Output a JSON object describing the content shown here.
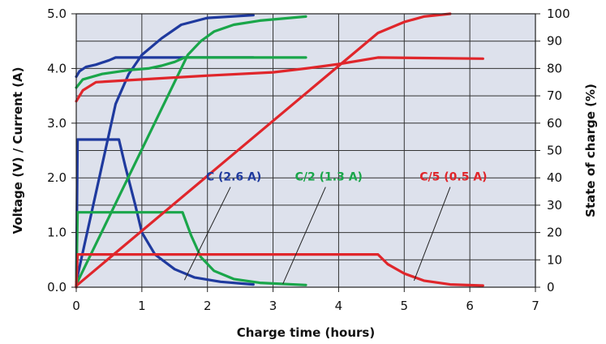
{
  "chart_data": {
    "type": "line",
    "xlabel": "Charge time (hours)",
    "ylabel_left": "Voltage (V) / Current (A)",
    "ylabel_right": "State of charge (%)",
    "xlim": [
      0,
      7
    ],
    "ylim_left": [
      0,
      5
    ],
    "ylim_right": [
      0,
      100
    ],
    "x_ticks": [
      "0",
      "1",
      "2",
      "3",
      "4",
      "5",
      "6",
      "7"
    ],
    "y_left_ticks": [
      "0.0",
      "1.0",
      "2.0",
      "3.0",
      "4.0",
      "5.0"
    ],
    "y_right_ticks": [
      "0",
      "10",
      "20",
      "30",
      "40",
      "50",
      "60",
      "70",
      "80",
      "90",
      "100"
    ],
    "grid": true,
    "background": "#dde1ec",
    "series": [
      {
        "name": "C (2.6 A)",
        "quantity": "voltage",
        "axis": "left",
        "color": "#1f3a9e",
        "points": [
          [
            0,
            3.85
          ],
          [
            0.05,
            3.95
          ],
          [
            0.15,
            4.03
          ],
          [
            0.3,
            4.07
          ],
          [
            0.5,
            4.15
          ],
          [
            0.6,
            4.2
          ],
          [
            2.7,
            4.2
          ]
        ]
      },
      {
        "name": "C (2.6 A)",
        "quantity": "current",
        "axis": "left",
        "color": "#1f3a9e",
        "points": [
          [
            0,
            0
          ],
          [
            0.02,
            2.7
          ],
          [
            0.65,
            2.7
          ],
          [
            0.75,
            2.2
          ],
          [
            0.9,
            1.5
          ],
          [
            1.0,
            1.0
          ],
          [
            1.2,
            0.6
          ],
          [
            1.5,
            0.33
          ],
          [
            1.8,
            0.18
          ],
          [
            2.2,
            0.1
          ],
          [
            2.7,
            0.05
          ]
        ]
      },
      {
        "name": "C (2.6 A)",
        "quantity": "state_of_charge",
        "axis": "right",
        "color": "#1f3a9e",
        "points": [
          [
            0,
            2
          ],
          [
            0.6,
            67
          ],
          [
            0.8,
            78
          ],
          [
            1.0,
            85
          ],
          [
            1.3,
            91
          ],
          [
            1.6,
            96
          ],
          [
            2.0,
            98.5
          ],
          [
            2.7,
            99.5
          ]
        ]
      },
      {
        "name": "C/2 (1.3 A)",
        "quantity": "voltage",
        "axis": "left",
        "color": "#1aa64a",
        "points": [
          [
            0,
            3.65
          ],
          [
            0.1,
            3.8
          ],
          [
            0.4,
            3.9
          ],
          [
            0.8,
            3.97
          ],
          [
            1.1,
            4.0
          ],
          [
            1.3,
            4.05
          ],
          [
            1.5,
            4.12
          ],
          [
            1.65,
            4.2
          ],
          [
            3.5,
            4.2
          ]
        ]
      },
      {
        "name": "C/2 (1.3 A)",
        "quantity": "current",
        "axis": "left",
        "color": "#1aa64a",
        "points": [
          [
            0,
            0
          ],
          [
            0.02,
            1.37
          ],
          [
            1.62,
            1.37
          ],
          [
            1.75,
            0.95
          ],
          [
            1.9,
            0.55
          ],
          [
            2.1,
            0.3
          ],
          [
            2.4,
            0.15
          ],
          [
            2.8,
            0.08
          ],
          [
            3.5,
            0.04
          ]
        ]
      },
      {
        "name": "C/2 (1.3 A)",
        "quantity": "state_of_charge",
        "axis": "right",
        "color": "#1aa64a",
        "points": [
          [
            0,
            1
          ],
          [
            1.7,
            85
          ],
          [
            1.9,
            90
          ],
          [
            2.1,
            93.5
          ],
          [
            2.4,
            96
          ],
          [
            2.8,
            97.5
          ],
          [
            3.5,
            99
          ]
        ]
      },
      {
        "name": "C/5 (0.5 A)",
        "quantity": "voltage",
        "axis": "left",
        "color": "#e0262b",
        "points": [
          [
            0,
            3.4
          ],
          [
            0.1,
            3.6
          ],
          [
            0.3,
            3.75
          ],
          [
            1.0,
            3.8
          ],
          [
            2.0,
            3.87
          ],
          [
            3.0,
            3.93
          ],
          [
            3.5,
            4.0
          ],
          [
            4.0,
            4.08
          ],
          [
            4.6,
            4.2
          ],
          [
            6.2,
            4.18
          ]
        ]
      },
      {
        "name": "C/5 (0.5 A)",
        "quantity": "current",
        "axis": "left",
        "color": "#e0262b",
        "points": [
          [
            0,
            0
          ],
          [
            0.02,
            0.6
          ],
          [
            4.6,
            0.6
          ],
          [
            4.75,
            0.42
          ],
          [
            5.0,
            0.25
          ],
          [
            5.3,
            0.12
          ],
          [
            5.7,
            0.05
          ],
          [
            6.2,
            0.03
          ]
        ]
      },
      {
        "name": "C/5 (0.5 A)",
        "quantity": "state_of_charge",
        "axis": "right",
        "color": "#e0262b",
        "points": [
          [
            0,
            0.5
          ],
          [
            4.6,
            93
          ],
          [
            5.0,
            97
          ],
          [
            5.3,
            99
          ],
          [
            5.7,
            100
          ]
        ]
      }
    ],
    "annotations": [
      {
        "text": "C (2.6 A)",
        "color": "#1f3a9e",
        "label_at": [
          2.4,
          1.95
        ],
        "arrow_to": [
          1.65,
          0.13
        ]
      },
      {
        "text": "C/2 (1.3 A)",
        "color": "#1aa64a",
        "label_at": [
          3.85,
          1.95
        ],
        "arrow_to": [
          3.15,
          0.06
        ]
      },
      {
        "text": "C/5 (0.5 A)",
        "color": "#e0262b",
        "label_at": [
          5.75,
          1.95
        ],
        "arrow_to": [
          5.15,
          0.12
        ]
      }
    ]
  }
}
